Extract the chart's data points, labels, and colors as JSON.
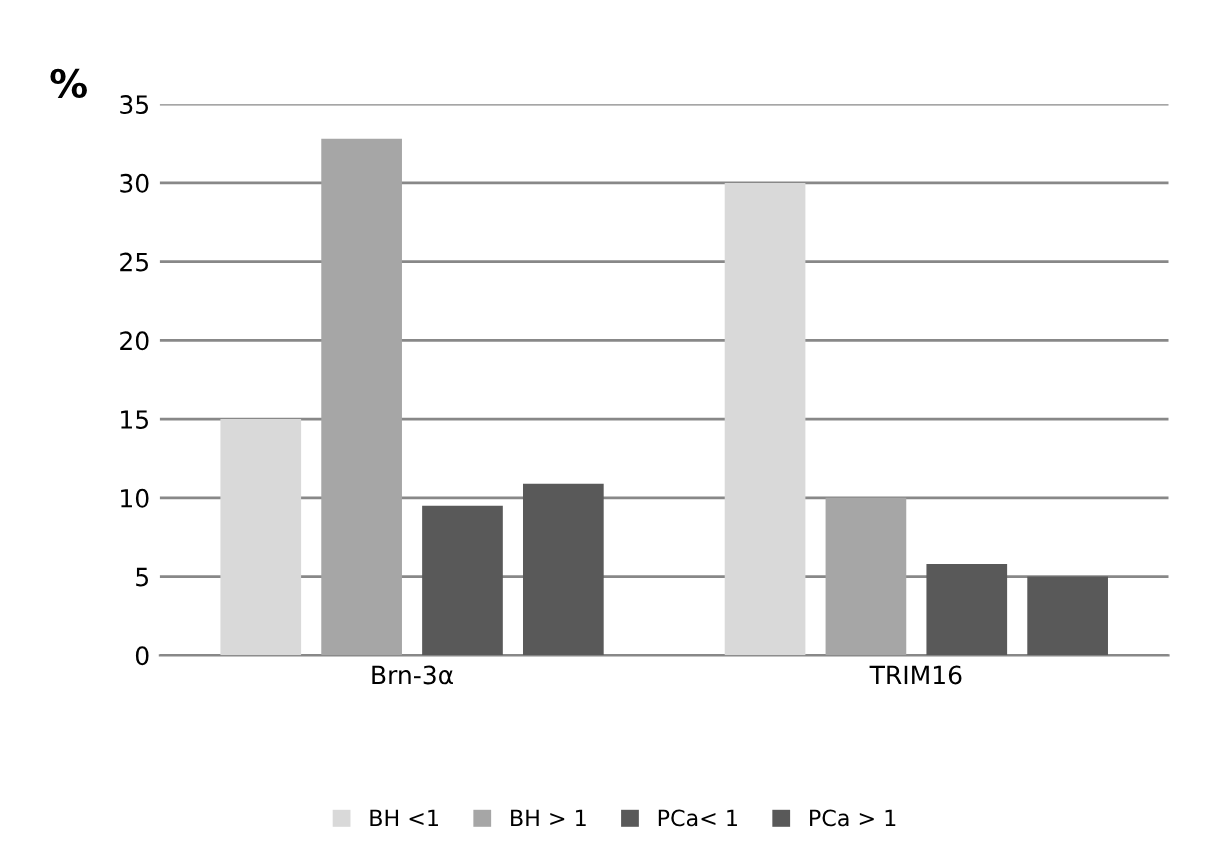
{
  "chart_data": {
    "type": "bar",
    "ylabel": "%",
    "categories": [
      "Brn-3α",
      "TRIM16"
    ],
    "series": [
      {
        "name": "BH <1",
        "color": "#d9d9d9",
        "values": [
          15,
          30
        ]
      },
      {
        "name": "BH > 1",
        "color": "#a6a6a6",
        "values": [
          32.8,
          10
        ]
      },
      {
        "name": "PCa< 1",
        "color": "#595959",
        "values": [
          9.5,
          5.8
        ]
      },
      {
        "name": "PCa > 1",
        "color": "#595959",
        "values": [
          10.9,
          5
        ]
      }
    ],
    "ylim": [
      0,
      35
    ],
    "yticks": [
      0,
      5,
      10,
      15,
      20,
      25,
      30,
      35
    ],
    "grid": "y",
    "legend": "bottom"
  }
}
